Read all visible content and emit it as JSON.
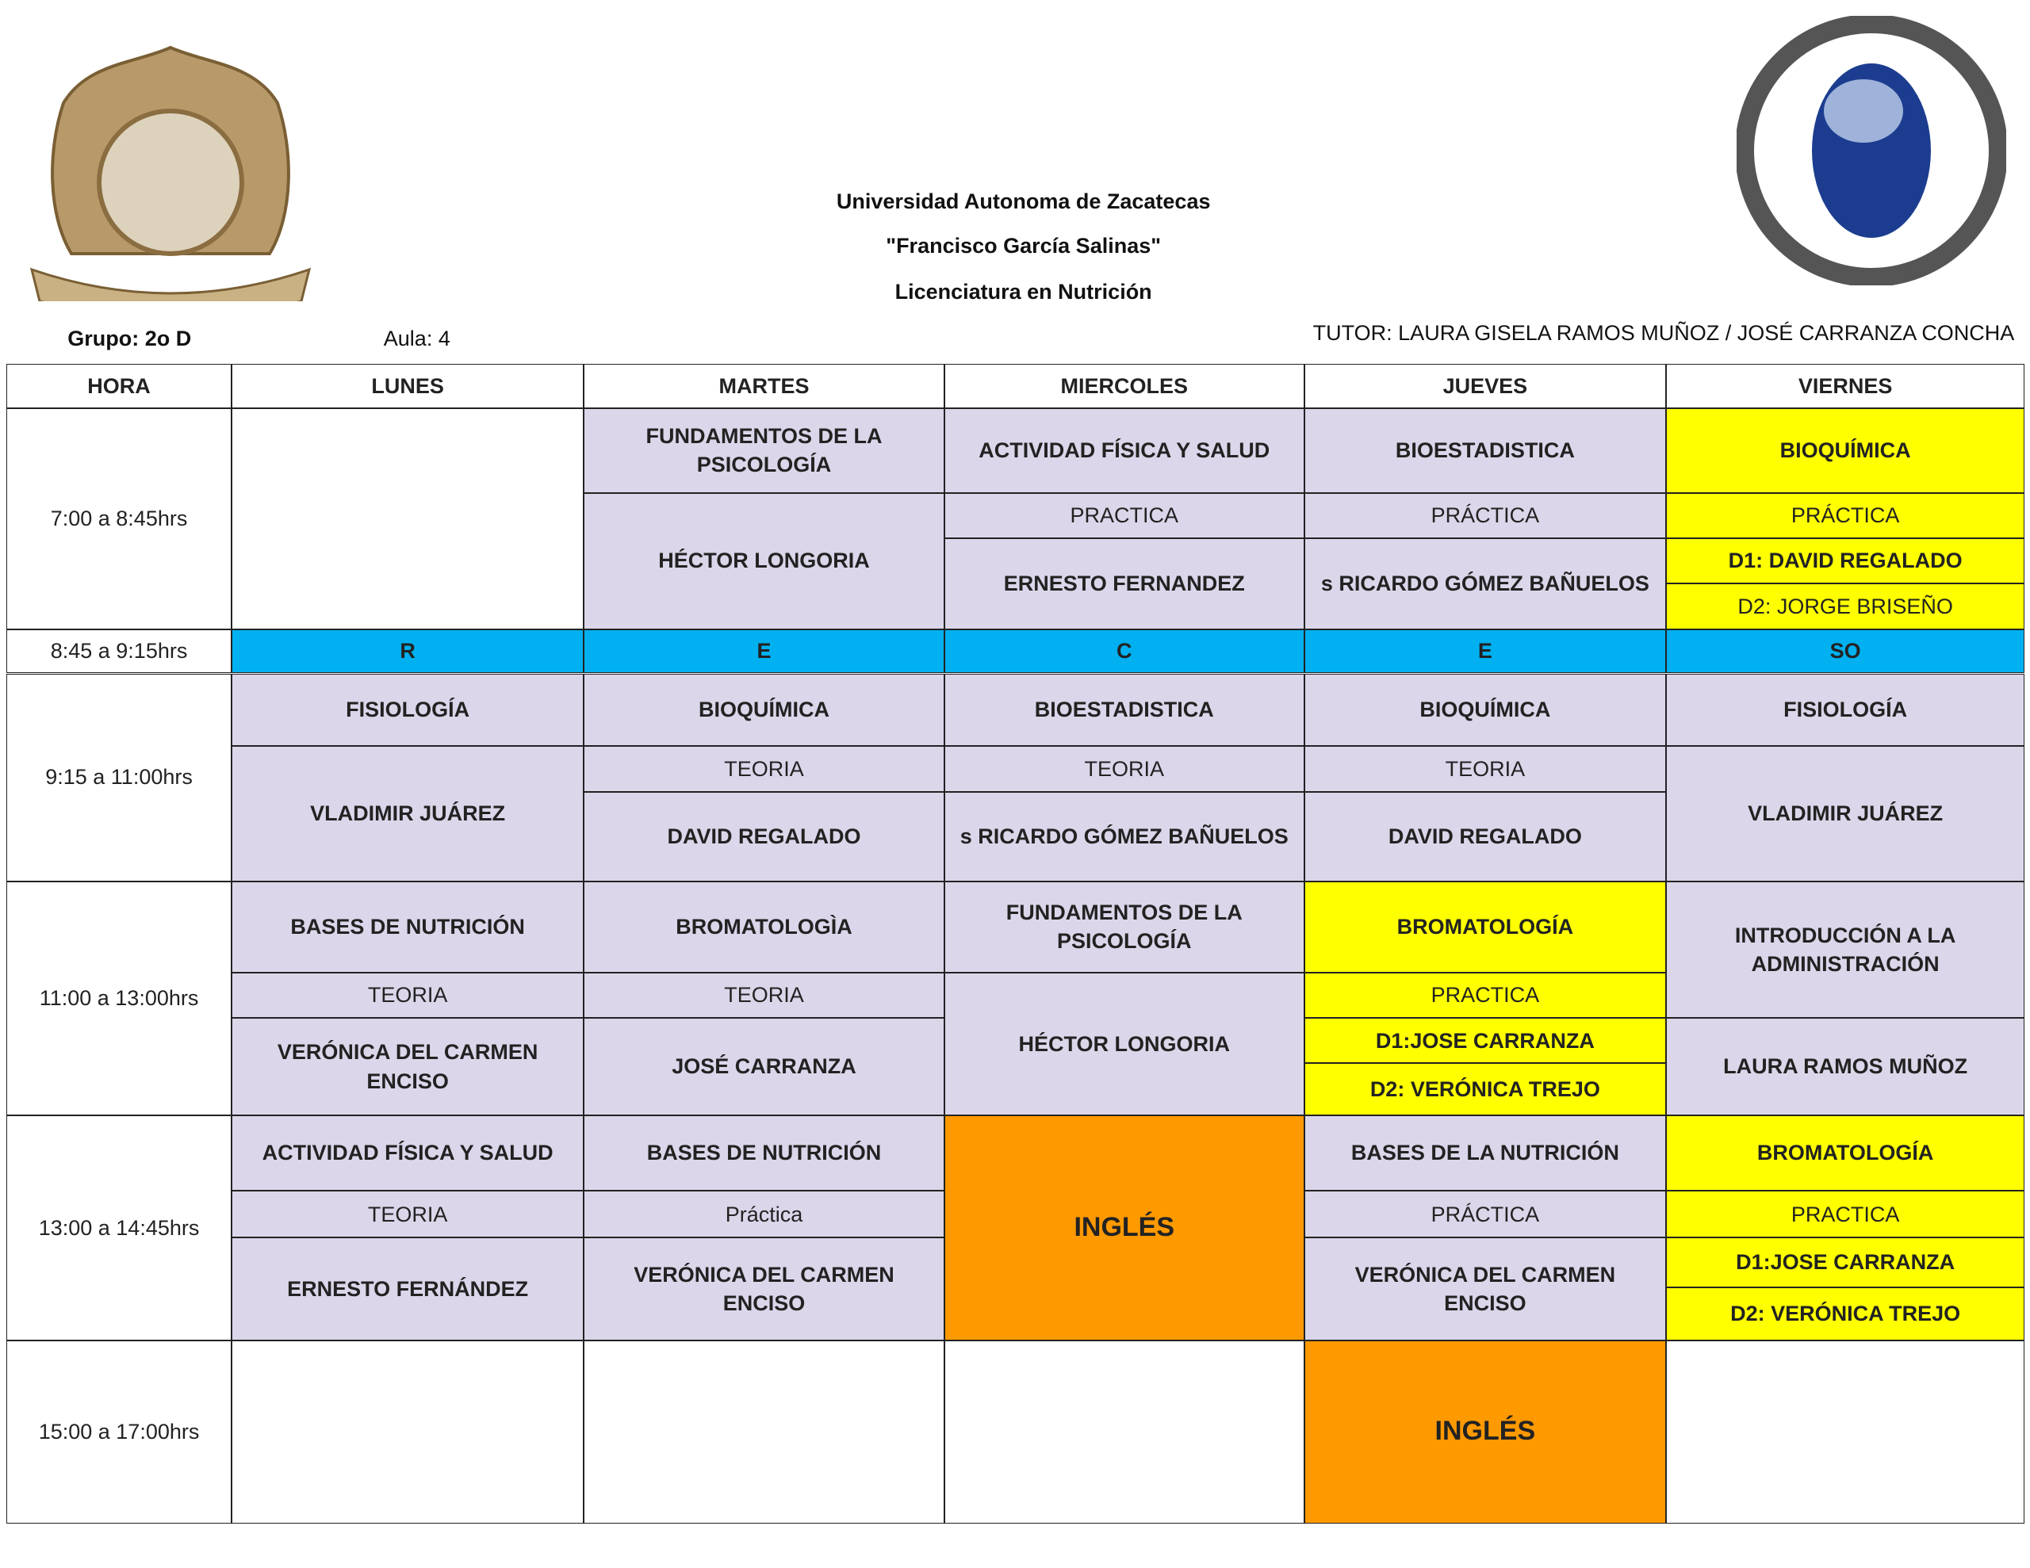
{
  "header": {
    "titles": [
      "Universidad Autonoma de Zacatecas",
      "\"Francisco García Salinas\"",
      "Licenciatura en Nutrición"
    ],
    "group": "Grupo: 2o D",
    "classroom": "Aula: 4",
    "tutor": "TUTOR:  LAURA GISELA RAMOS MUÑOZ / JOSÉ CARRANZA CONCHA"
  },
  "table": {
    "columns": [
      "HORA",
      "LUNES",
      "MARTES",
      "MIERCOLES",
      "JUEVES",
      "VIERNES"
    ],
    "recess": {
      "hour": "8:45 a 9:15hrs",
      "days": [
        "R",
        "E",
        "C",
        "E",
        "SO"
      ]
    },
    "slots": [
      {
        "hour": "7:00 a 8:45hrs",
        "days": [
          [],
          [
            "FUNDAMENTOS DE LA PSICOLOGÍA",
            "HÉCTOR LONGORIA"
          ],
          [
            "ACTIVIDAD FÍSICA Y SALUD",
            "PRACTICA",
            "ERNESTO FERNANDEZ"
          ],
          [
            "BIOESTADISTICA",
            "PRÁCTICA",
            "s RICARDO GÓMEZ BAÑUELOS"
          ],
          [
            "BIOQUÍMICA",
            "PRÁCTICA",
            "D1:  DAVID REGALADO",
            "D2: JORGE BRISEÑO"
          ]
        ]
      },
      {
        "hour": "9:15 a 11:00hrs",
        "days": [
          [
            "FISIOLOGÍA",
            "VLADIMIR JUÁREZ"
          ],
          [
            "BIOQUÍMICA",
            "TEORIA",
            "DAVID REGALADO"
          ],
          [
            "BIOESTADISTICA",
            "TEORIA",
            "s RICARDO GÓMEZ BAÑUELOS"
          ],
          [
            "BIOQUÍMICA",
            "TEORIA",
            "DAVID REGALADO"
          ],
          [
            "FISIOLOGÍA",
            "VLADIMIR JUÁREZ"
          ]
        ]
      },
      {
        "hour": "11:00 a 13:00hrs",
        "days": [
          [
            "BASES DE NUTRICIÓN",
            "TEORIA",
            "VERÓNICA DEL CARMEN ENCISO"
          ],
          [
            "BROMATOLOGÌA",
            "TEORIA",
            "JOSÉ CARRANZA"
          ],
          [
            "FUNDAMENTOS DE LA PSICOLOGÍA",
            "HÉCTOR LONGORIA"
          ],
          [
            "BROMATOLOGÍA",
            "PRACTICA",
            "D1:JOSE CARRANZA",
            "D2: VERÓNICA TREJO"
          ],
          [
            "INTRODUCCIÓN A LA ADMINISTRACIÓN",
            "LAURA RAMOS MUÑOZ"
          ]
        ]
      },
      {
        "hour": "13:00 a 14:45hrs",
        "days": [
          [
            "ACTIVIDAD FÍSICA Y SALUD",
            "TEORIA",
            "ERNESTO FERNÁNDEZ"
          ],
          [
            "BASES DE NUTRICIÓN",
            "Práctica",
            "VERÓNICA DEL CARMEN ENCISO"
          ],
          [
            "INGLÉS"
          ],
          [
            "BASES DE LA NUTRICIÓN",
            "PRÁCTICA",
            "VERÓNICA DEL CARMEN ENCISO"
          ],
          [
            "BROMATOLOGÍA",
            "PRACTICA",
            "D1:JOSE CARRANZA",
            "D2: VERÓNICA TREJO"
          ]
        ]
      },
      {
        "hour": "15:00  a 17:00hrs",
        "days": [
          [],
          [],
          [],
          [
            "INGLÉS"
          ],
          []
        ]
      }
    ]
  }
}
